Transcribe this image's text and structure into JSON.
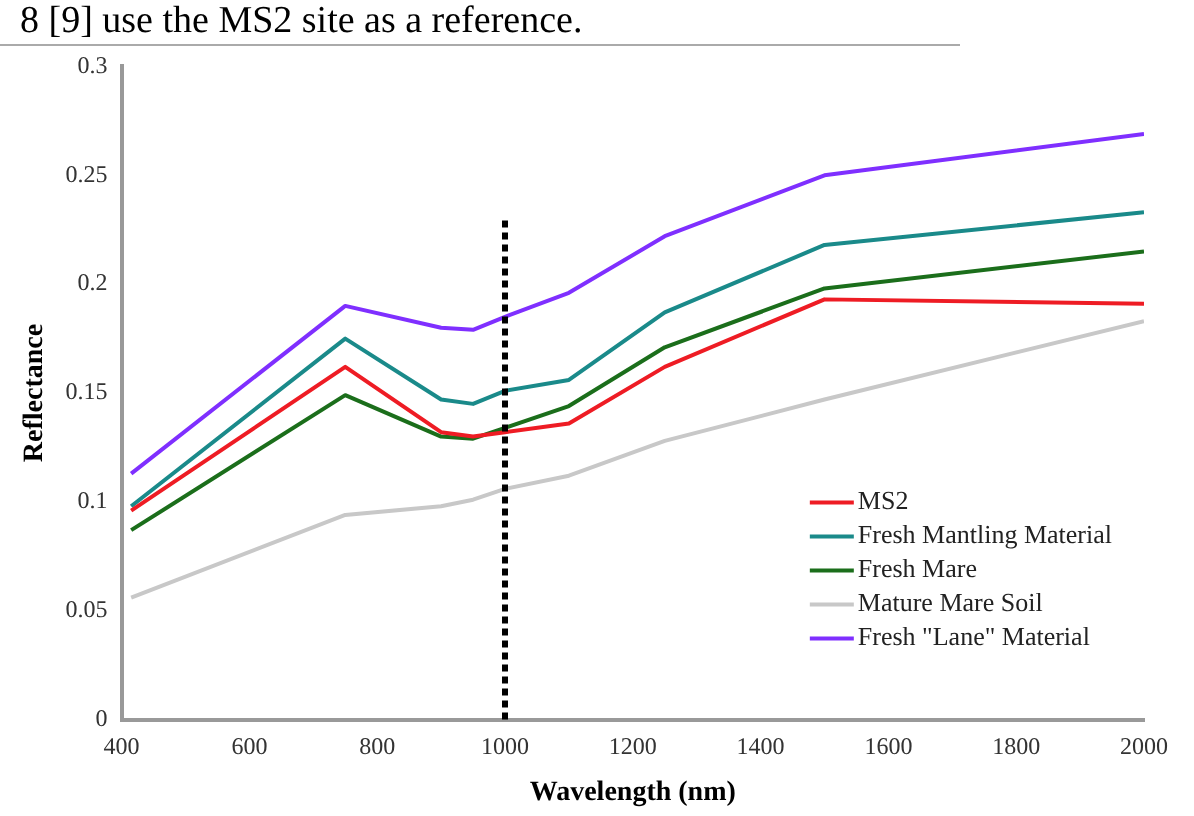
{
  "chart_data": {
    "type": "line",
    "annotations": [
      "8 [9] use the MS2 site as a reference."
    ],
    "xlabel": "Wavelength (nm)",
    "ylabel": "Reflectance",
    "x": [
      415,
      750,
      900,
      950,
      1000,
      1100,
      1250,
      1500,
      2000
    ],
    "series": [
      {
        "name": "MS2",
        "color": "#ee1c24",
        "values": [
          0.096,
          0.162,
          0.132,
          0.13,
          0.132,
          0.136,
          0.162,
          0.193,
          0.191
        ]
      },
      {
        "name": "Fresh Mantling Material",
        "color": "#1a8a8a",
        "values": [
          0.098,
          0.175,
          0.147,
          0.145,
          0.151,
          0.156,
          0.187,
          0.218,
          0.233
        ]
      },
      {
        "name": "Fresh Mare",
        "color": "#1b6e1b",
        "values": [
          0.087,
          0.149,
          0.13,
          0.129,
          0.134,
          0.144,
          0.171,
          0.198,
          0.215
        ]
      },
      {
        "name": "Mature Mare Soil",
        "color": "#c8c8c8",
        "values": [
          0.056,
          0.094,
          0.098,
          0.101,
          0.106,
          0.112,
          0.128,
          0.147,
          0.183
        ]
      },
      {
        "name": "Fresh \"Lane\" Material",
        "color": "#7f2fff",
        "values": [
          0.113,
          0.19,
          0.18,
          0.179,
          0.185,
          0.196,
          0.222,
          0.25,
          0.269
        ]
      }
    ],
    "xlim": [
      400,
      2000
    ],
    "xticks": [
      400,
      600,
      800,
      1000,
      1200,
      1400,
      1600,
      1800,
      2000
    ],
    "ylim": [
      0,
      0.3
    ],
    "yticks": [
      0,
      0.05,
      0.1,
      0.15,
      0.2,
      0.25,
      0.3
    ],
    "ref_lines": [
      {
        "axis": "x",
        "value": 1000,
        "color": "#000000",
        "line_style": "dashed"
      }
    ],
    "grid": false,
    "legend": "bottom right",
    "marker": "none",
    "line_style": "solid"
  }
}
